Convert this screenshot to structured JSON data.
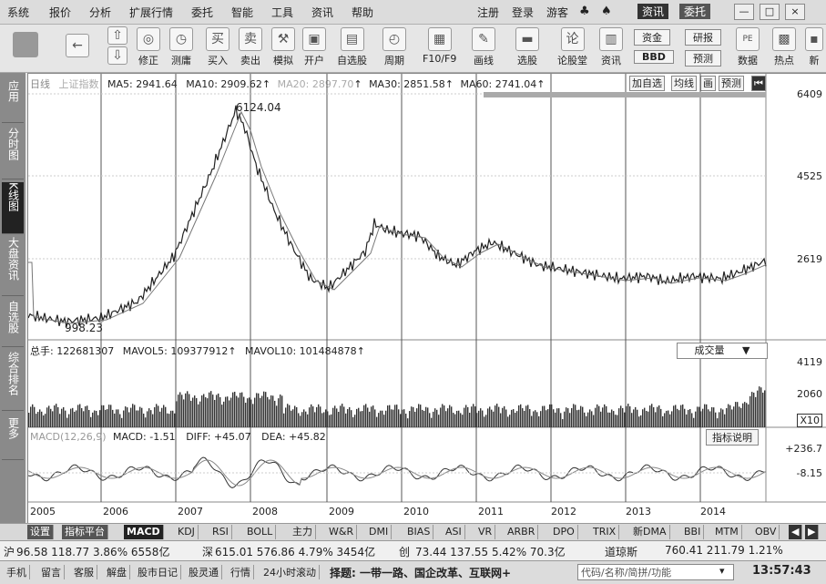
{
  "menubar": {
    "items": [
      "系统",
      "报价",
      "分析",
      "扩展行情",
      "委托",
      "智能",
      "工具",
      "资讯",
      "帮助"
    ],
    "right_items": [
      "注册",
      "登录",
      "游客"
    ],
    "news_btn": "资讯",
    "trade_btn": "委托",
    "win_min": "—",
    "win_max": "□",
    "win_close": "×"
  },
  "toolbar": {
    "buttons": [
      "修正",
      "测庸",
      "买入",
      "卖出",
      "模拟",
      "开户",
      "自选股",
      "周期",
      "F10/F9",
      "画线",
      "选股",
      "论股堂",
      "资讯"
    ],
    "right_buttons": [
      "资金",
      "研报",
      "BBD",
      "预测",
      "数据",
      "热点",
      "新"
    ],
    "icons": {
      "back": "←",
      "up": "⇧",
      "down": "⇩",
      "buy": "买",
      "sell": "卖"
    }
  },
  "leftnav": {
    "tabs": [
      "应用",
      "分时图",
      "K线图",
      "大盘资讯",
      "自选股",
      "综合排名",
      "更多"
    ],
    "active": "K线图"
  },
  "main_chart": {
    "period_label": "日线",
    "index_name": "上证指数",
    "legend": {
      "ma5": "MA5: 2941.64",
      "ma10": "MA10: 2909.62",
      "ma20": "MA20: 2897.70",
      "ma30": "MA30: 2851.58",
      "ma60": "MA60: 2741.04"
    },
    "buttons": [
      "加自选",
      "均线",
      "画",
      "预测"
    ],
    "y_labels": [
      "6409",
      "4525",
      "2619"
    ],
    "high_label": "6124.04",
    "low_label": "998.23",
    "up_arrow": "↑"
  },
  "volume_chart": {
    "legend": {
      "total": "总手: 122681307",
      "mavol5": "MAVOL5: 109377912",
      "mavol10": "MAVOL10: 101484878"
    },
    "dropdown": "成交量",
    "dropdown_arrow": "▼",
    "y_labels": [
      "4119",
      "2060",
      "X10"
    ]
  },
  "macd_chart": {
    "legend": {
      "macd_params": "MACD(12,26,9)",
      "macd": "MACD: -1.51",
      "diff": "DIFF: +45.07",
      "dea": "DEA: +45.82"
    },
    "help_btn": "指标说明",
    "y_labels": [
      "+236.7",
      "-8.15"
    ]
  },
  "x_axis": [
    "2005",
    "2006",
    "2007",
    "2008",
    "2009",
    "2010",
    "2011",
    "2012",
    "2013",
    "2014"
  ],
  "indicator_tabs": [
    "设置",
    "指标平台",
    "MACD",
    "KDJ",
    "RSI",
    "BOLL",
    "主力",
    "W&R",
    "DMI",
    "BIAS",
    "ASI",
    "VR",
    "ARBR",
    "DPO",
    "TRIX",
    "新DMA",
    "BBI",
    "MTM",
    "OBV"
  ],
  "active_indicator": "MACD",
  "statusbar": {
    "sh": "沪",
    "sh_vals": "96.58 118.77 3.86% 6558亿",
    "sz": "深",
    "sz_vals": "615.01 576.86 4.79% 3454亿",
    "cy": "创",
    "cy_vals": "73.44 137.55 5.42% 70.3亿",
    "dj": "道琼斯",
    "dj_vals": "760.41 211.79 1.21%"
  },
  "bottombar": {
    "items": [
      "手机",
      "留言",
      "客服",
      "解盘",
      "股市日记",
      "股灵通",
      "行情",
      "24小时滚动"
    ],
    "ticker": "择题: 一带一路、国企改革、互联网+",
    "code_hint": "代码/名称/简拼/功能",
    "time": "13:57:43"
  },
  "colors": {
    "accent": "#222222",
    "chart_bg": "#ffffff",
    "line": "#333333"
  }
}
